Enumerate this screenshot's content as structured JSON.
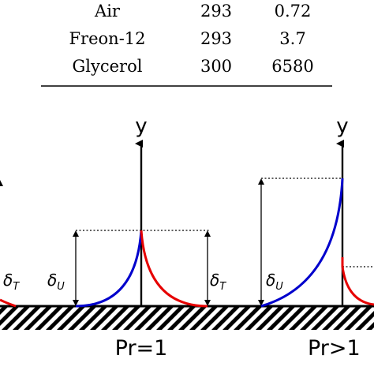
{
  "table": {
    "rows": [
      {
        "fluid": "Air",
        "temperature": "293",
        "prandtl": "0.72"
      },
      {
        "fluid": "Freon-12",
        "temperature": "293",
        "prandtl": "3.7"
      },
      {
        "fluid": "Glycerol",
        "temperature": "300",
        "prandtl": "6580"
      }
    ]
  },
  "diagram": {
    "axis_label": "y",
    "velocity_thickness_label": "δ",
    "velocity_thickness_sub": "U",
    "thermal_thickness_label": "δ",
    "thermal_thickness_sub": "T",
    "panels": [
      {
        "caption": "Pr=1"
      },
      {
        "caption": "Pr>1"
      }
    ],
    "colors": {
      "velocity_profile": "#0000cc",
      "thermal_profile": "#e60000",
      "wall": "#000000"
    }
  }
}
